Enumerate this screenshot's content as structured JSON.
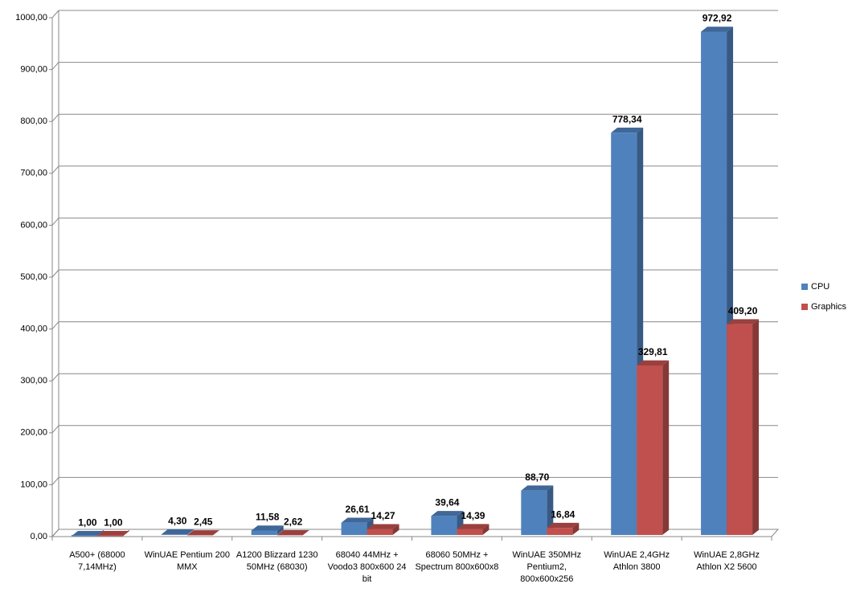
{
  "chart_data": {
    "type": "bar",
    "categories": [
      "A500+ (68000 7,14MHz)",
      "WinUAE Pentium 200 MMX",
      "A1200 Blizzard 1230 50MHz (68030)",
      "68040 44MHz + Voodo3 800x600 24 bit",
      "68060 50MHz + Spectrum 800x600x8",
      "WinUAE 350MHz Pentium2, 800x600x256",
      "WinUAE 2,4GHz Athlon 3800",
      "WinUAE 2,8GHz Athlon X2 5600"
    ],
    "series": [
      {
        "name": "CPU",
        "color": "#4f81bd",
        "values": [
          1,
          4.3,
          11.58,
          26.61,
          39.64,
          88.7,
          778.34,
          972.92
        ],
        "value_labels": [
          "1,00",
          "4,30",
          "11,58",
          "26,61",
          "39,64",
          "88,70",
          "778,34",
          "972,92"
        ]
      },
      {
        "name": "Graphics",
        "color": "#c0504d",
        "values": [
          1,
          2.45,
          2.62,
          14.27,
          14.39,
          16.84,
          329.81,
          409.2
        ],
        "value_labels": [
          "1,00",
          "2,45",
          "2,62",
          "14,27",
          "14,39",
          "16,84",
          "329,81",
          "409,20"
        ]
      }
    ],
    "ylim": [
      0,
      1000
    ],
    "yticks": [
      {
        "value": 0,
        "label": "0,00"
      },
      {
        "value": 100,
        "label": "100,00"
      },
      {
        "value": 200,
        "label": "200,00"
      },
      {
        "value": 300,
        "label": "300,00"
      },
      {
        "value": 400,
        "label": "400,00"
      },
      {
        "value": 500,
        "label": "500,00"
      },
      {
        "value": 600,
        "label": "600,00"
      },
      {
        "value": 700,
        "label": "700,00"
      },
      {
        "value": 800,
        "label": "800,00"
      },
      {
        "value": 900,
        "label": "900,00"
      },
      {
        "value": 1000,
        "label": "1000,00"
      }
    ],
    "grid": true,
    "legend": "right"
  }
}
